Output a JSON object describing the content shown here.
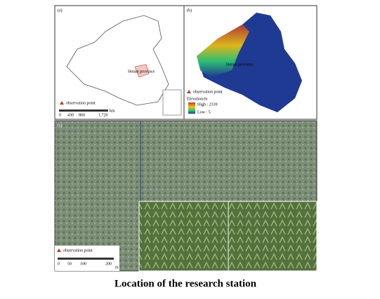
{
  "figure": {
    "panel_a": {
      "label": "(a)",
      "region": "Henan province",
      "legend": "observation point",
      "scale": [
        "0",
        "430",
        "860",
        "1,720"
      ],
      "scale_unit": "km"
    },
    "panel_b": {
      "label": "(b)",
      "region": "Henan province",
      "legend": "observation point",
      "elevation_title": "Elevation/m",
      "high": "High : 2339",
      "low": "Low : 5"
    },
    "panel_c": {
      "label": "(c)",
      "legend": "observation point",
      "scale": [
        "0",
        "50",
        "100",
        "200"
      ],
      "scale_unit": "m"
    },
    "caption": "Location of the research station"
  }
}
